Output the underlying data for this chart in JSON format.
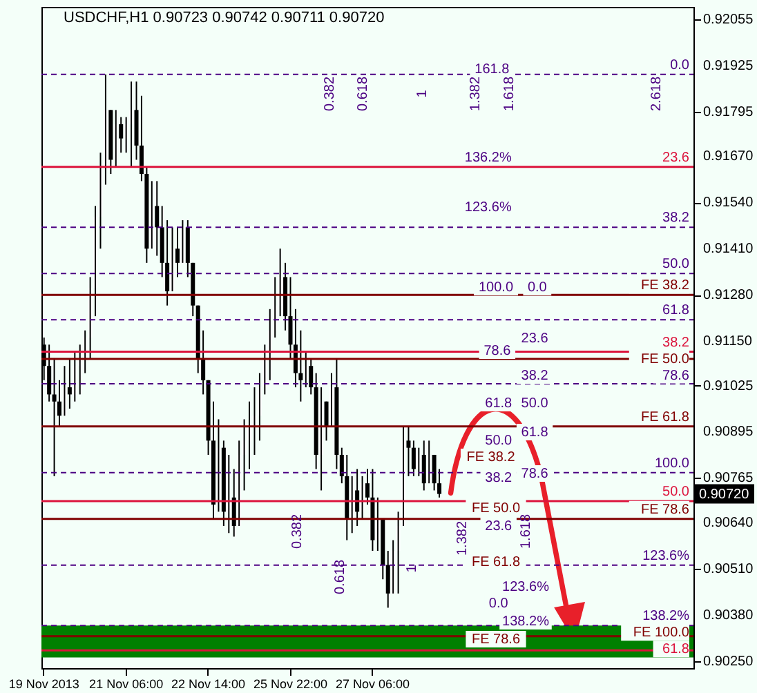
{
  "chart_data": {
    "type": "candlestick",
    "title": "USDCHF,H1 0.90723 0.90742 0.90711 0.90720",
    "categories": [
      "19 Nov 2013",
      null,
      null,
      null,
      null,
      null,
      null,
      null,
      null,
      null,
      null,
      null,
      null,
      null,
      null,
      null,
      "21 Nov 06:00",
      null,
      null,
      null,
      null,
      null,
      null,
      null,
      null,
      null,
      null,
      null,
      null,
      null,
      null,
      null,
      "22 Nov 14:00",
      null,
      null,
      null,
      null,
      null,
      null,
      null,
      null,
      null,
      null,
      null,
      null,
      null,
      null,
      null,
      "25 Nov 22:00",
      null,
      null,
      null,
      null,
      null,
      null,
      null,
      null,
      null,
      null,
      null,
      null,
      null,
      null,
      null,
      "27 Nov 06:00",
      null,
      null,
      null,
      null,
      null,
      null,
      null,
      null,
      null,
      null,
      null,
      null,
      null,
      null,
      null,
      null,
      null,
      null,
      null,
      null,
      null,
      null,
      null,
      null,
      null,
      null,
      null,
      null,
      null,
      null,
      null,
      null,
      null,
      null,
      null,
      null,
      null,
      null,
      null,
      null,
      null,
      null,
      null,
      null,
      null,
      null,
      null,
      null,
      null,
      null,
      null,
      null,
      null,
      null,
      null,
      null,
      null,
      null,
      null,
      null,
      null,
      null
    ],
    "ohlc": [
      [
        0.9114,
        0.9116,
        0.9104,
        0.9108
      ],
      [
        0.9108,
        0.9114,
        0.9098,
        0.91
      ],
      [
        0.91,
        0.911,
        0.9077,
        0.9098
      ],
      [
        0.9098,
        0.9104,
        0.9091,
        0.9094
      ],
      [
        0.9094,
        0.9108,
        0.9094,
        0.9102
      ],
      [
        0.9102,
        0.911,
        0.9096,
        0.91
      ],
      [
        0.91,
        0.9112,
        0.9098,
        0.9108
      ],
      [
        0.9108,
        0.9114,
        0.91,
        0.911
      ],
      [
        0.911,
        0.9118,
        0.9106,
        0.9116
      ],
      [
        0.9116,
        0.9133,
        0.911,
        0.913
      ],
      [
        0.913,
        0.9153,
        0.9122,
        0.915
      ],
      [
        0.915,
        0.9168,
        0.9141,
        0.9164
      ],
      [
        0.9164,
        0.919,
        0.9159,
        0.918
      ],
      [
        0.918,
        0.918,
        0.9162,
        0.9166
      ],
      [
        0.9166,
        0.918,
        0.9164,
        0.9176
      ],
      [
        0.9176,
        0.9178,
        0.9168,
        0.9172
      ],
      [
        0.9172,
        0.9178,
        0.9168,
        0.9176
      ],
      [
        0.9176,
        0.9188,
        0.9164,
        0.918
      ],
      [
        0.918,
        0.9188,
        0.9166,
        0.917
      ],
      [
        0.917,
        0.9184,
        0.916,
        0.9162
      ],
      [
        0.9162,
        0.9164,
        0.9137,
        0.9141
      ],
      [
        0.9141,
        0.916,
        0.9141,
        0.9153
      ],
      [
        0.9153,
        0.916,
        0.9139,
        0.9147
      ],
      [
        0.9147,
        0.9153,
        0.9133,
        0.9137
      ],
      [
        0.9137,
        0.9149,
        0.9125,
        0.9129
      ],
      [
        0.9129,
        0.9147,
        0.9129,
        0.9141
      ],
      [
        0.9141,
        0.9147,
        0.9133,
        0.9137
      ],
      [
        0.9137,
        0.9149,
        0.9137,
        0.9147
      ],
      [
        0.9147,
        0.9149,
        0.9133,
        0.9137
      ],
      [
        0.9137,
        0.9137,
        0.9122,
        0.9125
      ],
      [
        0.9125,
        0.9125,
        0.9106,
        0.911
      ],
      [
        0.911,
        0.9118,
        0.91,
        0.9104
      ],
      [
        0.9104,
        0.9104,
        0.9083,
        0.9087
      ],
      [
        0.9087,
        0.9098,
        0.9065,
        0.9069
      ],
      [
        0.9069,
        0.9093,
        0.9067,
        0.9085
      ],
      [
        0.9085,
        0.9087,
        0.9063,
        0.9067
      ],
      [
        0.9067,
        0.9083,
        0.9061,
        0.9071
      ],
      [
        0.9071,
        0.9079,
        0.906,
        0.9063
      ],
      [
        0.9063,
        0.9087,
        0.9063,
        0.9083
      ],
      [
        0.9083,
        0.9093,
        0.9073,
        0.9087
      ],
      [
        0.9087,
        0.9098,
        0.9079,
        0.9091
      ],
      [
        0.9091,
        0.9102,
        0.9083,
        0.9094
      ],
      [
        0.9094,
        0.9106,
        0.9087,
        0.9102
      ],
      [
        0.9102,
        0.9114,
        0.91,
        0.911
      ],
      [
        0.911,
        0.9124,
        0.9104,
        0.9118
      ],
      [
        0.9118,
        0.9133,
        0.9116,
        0.9125
      ],
      [
        0.9125,
        0.9141,
        0.9122,
        0.9133
      ],
      [
        0.9133,
        0.9137,
        0.9118,
        0.9122
      ],
      [
        0.9122,
        0.9133,
        0.911,
        0.9114
      ],
      [
        0.9114,
        0.9124,
        0.9102,
        0.9106
      ],
      [
        0.9106,
        0.9118,
        0.9098,
        0.9104
      ],
      [
        0.9104,
        0.9112,
        0.9102,
        0.9108
      ],
      [
        0.9108,
        0.911,
        0.91,
        0.9102
      ],
      [
        0.9102,
        0.9106,
        0.9079,
        0.9083
      ],
      [
        0.9083,
        0.9102,
        0.9073,
        0.9098
      ],
      [
        0.9098,
        0.9098,
        0.9087,
        0.9091
      ],
      [
        0.9091,
        0.9106,
        0.9091,
        0.9102
      ],
      [
        0.9102,
        0.911,
        0.9079,
        0.9083
      ],
      [
        0.9083,
        0.9085,
        0.9075,
        0.9077
      ],
      [
        0.9077,
        0.9083,
        0.9059,
        0.9065
      ],
      [
        0.9065,
        0.9077,
        0.9061,
        0.9073
      ],
      [
        0.9073,
        0.9079,
        0.9063,
        0.9067
      ],
      [
        0.9067,
        0.9077,
        0.9065,
        0.9075
      ],
      [
        0.9075,
        0.9079,
        0.9069,
        0.9071
      ],
      [
        0.9071,
        0.9079,
        0.9056,
        0.9059
      ],
      [
        0.9059,
        0.9071,
        0.9056,
        0.9065
      ],
      [
        0.9065,
        0.9065,
        0.9048,
        0.9052
      ],
      [
        0.9052,
        0.9056,
        0.904,
        0.9044
      ],
      [
        0.9044,
        0.9059,
        0.9044,
        0.9056
      ],
      [
        0.9056,
        0.9067,
        0.9044,
        0.9063
      ],
      [
        0.9063,
        0.9091,
        0.9063,
        0.9087
      ],
      [
        0.9087,
        0.9091,
        0.9077,
        0.9085
      ],
      [
        0.9085,
        0.9087,
        0.9077,
        0.9079
      ],
      [
        0.9079,
        0.9085,
        0.9077,
        0.9083
      ],
      [
        0.9083,
        0.9087,
        0.9073,
        0.9075
      ],
      [
        0.9075,
        0.9087,
        0.9075,
        0.9083
      ],
      [
        0.9083,
        0.9083,
        0.9073,
        0.9075
      ],
      [
        0.9075,
        0.9079,
        0.9071,
        0.9072
      ],
      null,
      null,
      null,
      null,
      null,
      null,
      null,
      null,
      null,
      null,
      null,
      null,
      null,
      null,
      null,
      null,
      null,
      null,
      null,
      null,
      null,
      null,
      null,
      null,
      null,
      null,
      null,
      null,
      null,
      null,
      null,
      null,
      null,
      null,
      null,
      null,
      null,
      null,
      null,
      null,
      null,
      null,
      null,
      null,
      null,
      null,
      null,
      null,
      null
    ],
    "ylim": [
      0.9023,
      0.9209
    ],
    "yticks": [
      0.92055,
      {
        "value": 0.91925,
        "label": "0.91925"
      },
      0.91795,
      {
        "value": 0.9167,
        "label": "0.91670"
      },
      {
        "value": 0.9154,
        "label": "0.91540"
      },
      {
        "value": 0.9141,
        "label": "0.91410"
      },
      {
        "value": 0.9128,
        "label": "0.91280"
      },
      {
        "value": 0.9115,
        "label": "0.91150"
      },
      0.91025,
      0.90895,
      0.90765,
      {
        "value": 0.9064,
        "label": "0.90640"
      },
      {
        "value": 0.9051,
        "label": "0.90510"
      },
      {
        "value": 0.9038,
        "label": "0.90380"
      },
      {
        "value": 0.9025,
        "label": "0.90250"
      }
    ],
    "bands": [
      {
        "axis": "y",
        "from": 0.9026,
        "to": 0.9035,
        "color": "#008000"
      }
    ],
    "ref_lines": [
      {
        "axis": "y",
        "value": 0.919,
        "color": "#4b0082",
        "line_style": "dashed"
      },
      {
        "axis": "y",
        "value": 0.9164,
        "color": "#dc143c",
        "line_style": "solid"
      },
      {
        "axis": "y",
        "value": 0.9147,
        "color": "#4b0082",
        "line_style": "dashed"
      },
      {
        "axis": "y",
        "value": 0.9134,
        "color": "#4b0082",
        "line_style": "dashed"
      },
      {
        "axis": "y",
        "value": 0.9128,
        "color": "#800000",
        "line_style": "solid"
      },
      {
        "axis": "y",
        "value": 0.9121,
        "color": "#4b0082",
        "line_style": "dashed"
      },
      {
        "axis": "y",
        "value": 0.9112,
        "color": "#dc143c",
        "line_style": "solid"
      },
      {
        "axis": "y",
        "value": 0.911,
        "color": "#800000",
        "line_style": "solid"
      },
      {
        "axis": "y",
        "value": 0.9103,
        "color": "#4b0082",
        "line_style": "dashed"
      },
      {
        "axis": "y",
        "value": 0.9091,
        "color": "#800000",
        "line_style": "solid"
      },
      {
        "axis": "y",
        "value": 0.9078,
        "color": "#4b0082",
        "line_style": "dashed"
      },
      {
        "axis": "y",
        "value": 0.907,
        "color": "#dc143c",
        "line_style": "solid"
      },
      {
        "axis": "y",
        "value": 0.9065,
        "color": "#800000",
        "line_style": "solid"
      },
      {
        "axis": "y",
        "value": 0.9052,
        "color": "#4b0082",
        "line_style": "dashed"
      },
      {
        "axis": "y",
        "value": 0.9035,
        "color": "#4b0082",
        "line_style": "dashed"
      },
      {
        "axis": "y",
        "value": 0.9032,
        "color": "#800000",
        "line_style": "solid"
      },
      {
        "axis": "y",
        "value": 0.9028,
        "color": "#dc143c",
        "line_style": "solid"
      }
    ],
    "annotations": [
      {
        "text": "0.0",
        "y": 0.919
      },
      {
        "text": "23.6",
        "y": 0.9164
      },
      {
        "text": "38.2",
        "y": 0.9147
      },
      {
        "text": "50.0",
        "y": 0.9134
      },
      {
        "text": "FE 38.2",
        "y": 0.9128
      },
      {
        "text": "61.8",
        "y": 0.9121
      },
      {
        "text": "38.2",
        "y": 0.9112
      },
      {
        "text": "FE 50.0",
        "y": 0.911
      },
      {
        "text": "78.6",
        "y": 0.9103
      },
      {
        "text": "FE 61.8",
        "y": 0.9091
      },
      {
        "text": "100.0",
        "y": 0.9078
      },
      {
        "text": "50.0",
        "y": 0.907
      },
      {
        "text": "FE 78.6",
        "y": 0.9065
      },
      {
        "text": "123.6%",
        "y": 0.9052
      },
      {
        "text": "138.2%",
        "y": 0.9035
      },
      {
        "text": "FE 100.0",
        "y": 0.9032
      },
      {
        "text": "61.8",
        "y": 0.9028
      },
      {
        "text": "0.90720",
        "y": 0.9072
      },
      "136.2%",
      "123.6%",
      "100.0",
      "0.0",
      "78.6",
      "23.6",
      "38.2",
      "61.8",
      "50.0",
      "61.8",
      "50.0",
      "FE 38.2",
      "38.2",
      "78.6",
      "FE 50.0",
      "23.6",
      "FE 61.8",
      "123.6%",
      "0.0",
      "138.2%",
      "FE 78.6",
      "161.8",
      "0.382",
      "0.618",
      "1",
      "1.382",
      "1.618",
      "2.618",
      "0.382",
      "0.618",
      "1",
      "1.382",
      "1.618"
    ]
  }
}
